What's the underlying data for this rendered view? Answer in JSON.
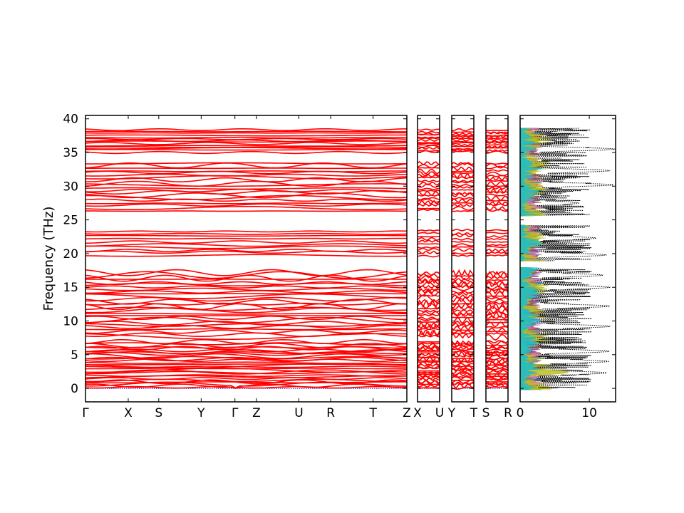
{
  "colors": {
    "band": "#ff0000",
    "zero_line": "#0000cc",
    "dos_total": "#000000",
    "pdos": [
      "#1f77b4",
      "#ff7f0e",
      "#2ca02c",
      "#d62728",
      "#9467bd",
      "#8c564b",
      "#e377c2",
      "#7f7f7f",
      "#bcbd22",
      "#17becf"
    ]
  },
  "chart_data": [
    {
      "type": "line",
      "name": "phonon-band-structure",
      "ylabel": "Frequency (THz)",
      "ylim": [
        -2,
        40.5
      ],
      "yticks": [
        0,
        5,
        10,
        15,
        20,
        25,
        30,
        35,
        40
      ],
      "segments": [
        {
          "labels": [
            "Γ",
            "X",
            "S",
            "Y",
            "Γ",
            "Z",
            "U",
            "R",
            "T",
            "Z"
          ],
          "positions": [
            0,
            0.133,
            0.228,
            0.36,
            0.465,
            0.532,
            0.664,
            0.763,
            0.895,
            1.0
          ]
        },
        {
          "labels": [
            "X",
            "U"
          ],
          "positions": [
            0,
            1
          ]
        },
        {
          "labels": [
            "Y",
            "T"
          ],
          "positions": [
            0,
            1
          ]
        },
        {
          "labels": [
            "S",
            "R"
          ],
          "positions": [
            0,
            1
          ]
        }
      ],
      "band_frequency_ranges_THz": [
        [
          0,
          7.0
        ],
        [
          7.5,
          17.3
        ],
        [
          19.5,
          23.6
        ],
        [
          26.2,
          33.6
        ],
        [
          35.0,
          38.4
        ]
      ]
    },
    {
      "type": "area",
      "name": "phonon-density-of-states",
      "xticks": [
        0,
        10
      ],
      "xlim": [
        0,
        13.8
      ],
      "ylim": [
        -2,
        40.5
      ],
      "total_dos_peaks": [
        {
          "freq": 2.3,
          "value": 12.5
        },
        {
          "freq": 4.0,
          "value": 12.8
        },
        {
          "freq": 5.5,
          "value": 12.9
        },
        {
          "freq": 9.2,
          "value": 13.0
        },
        {
          "freq": 12.2,
          "value": 13.0
        },
        {
          "freq": 15.0,
          "value": 13.0
        },
        {
          "freq": 16.8,
          "value": 12.0
        },
        {
          "freq": 19.8,
          "value": 12.5
        },
        {
          "freq": 22.3,
          "value": 11.0
        },
        {
          "freq": 27.5,
          "value": 8.5
        },
        {
          "freq": 30.2,
          "value": 13.5
        },
        {
          "freq": 32.3,
          "value": 13.0
        },
        {
          "freq": 35.5,
          "value": 13.7
        }
      ]
    }
  ]
}
